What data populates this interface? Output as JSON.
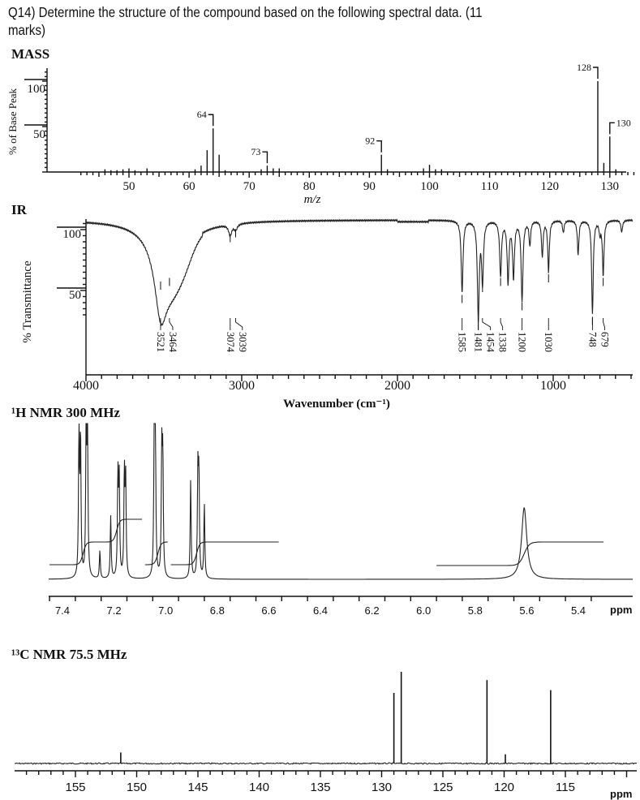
{
  "question": {
    "line1": "Q14) Determine the structure of the compound based on the following spectral data. (11",
    "line2": "marks)"
  },
  "chart_data": [
    {
      "type": "bar",
      "section_title": "MASS",
      "xlabel": "m/z",
      "ylabel": "% of Base Peak",
      "xlim": [
        40,
        135
      ],
      "ylim": [
        0,
        110
      ],
      "x_ticks": [
        50,
        60,
        70,
        80,
        90,
        100,
        110,
        120,
        130
      ],
      "y_ticks": [
        50,
        100
      ],
      "peaks": [
        {
          "mz": 46,
          "intensity": 3
        },
        {
          "mz": 47,
          "intensity": 2
        },
        {
          "mz": 48,
          "intensity": 2
        },
        {
          "mz": 49,
          "intensity": 3
        },
        {
          "mz": 50,
          "intensity": 4
        },
        {
          "mz": 51,
          "intensity": 2
        },
        {
          "mz": 53,
          "intensity": 4
        },
        {
          "mz": 61,
          "intensity": 3
        },
        {
          "mz": 62,
          "intensity": 7
        },
        {
          "mz": 63,
          "intensity": 24
        },
        {
          "mz": 64,
          "intensity": 48,
          "label": "64"
        },
        {
          "mz": 65,
          "intensity": 19
        },
        {
          "mz": 66,
          "intensity": 2
        },
        {
          "mz": 72,
          "intensity": 3
        },
        {
          "mz": 73,
          "intensity": 7,
          "label": "73"
        },
        {
          "mz": 74,
          "intensity": 4
        },
        {
          "mz": 75,
          "intensity": 4
        },
        {
          "mz": 92,
          "intensity": 19,
          "label": "92"
        },
        {
          "mz": 93,
          "intensity": 3
        },
        {
          "mz": 99,
          "intensity": 4
        },
        {
          "mz": 100,
          "intensity": 8
        },
        {
          "mz": 101,
          "intensity": 3
        },
        {
          "mz": 102,
          "intensity": 3
        },
        {
          "mz": 128,
          "intensity": 100,
          "label": "128"
        },
        {
          "mz": 129,
          "intensity": 10
        },
        {
          "mz": 130,
          "intensity": 39,
          "label": "130"
        },
        {
          "mz": 131,
          "intensity": 3
        }
      ]
    },
    {
      "type": "line",
      "section_title": "IR",
      "xlabel": "Wavenumber (cm⁻¹)",
      "ylabel": "% Transmittance",
      "xlim": [
        4000,
        490
      ],
      "x_reversed": true,
      "x_ticks": [
        4000,
        3000,
        2000,
        1000
      ],
      "y_ticks": [
        50,
        100
      ],
      "baseline_transmittance": 108,
      "peaks": [
        {
          "wavenumber": 3521,
          "transmittance": 60,
          "label": "3521"
        },
        {
          "wavenumber": 3464,
          "transmittance": 63,
          "label": "3464"
        },
        {
          "wavenumber": 3074,
          "transmittance": 99,
          "label": "3074"
        },
        {
          "wavenumber": 3039,
          "transmittance": 103,
          "label": "3039"
        },
        {
          "wavenumber": 1585,
          "transmittance": 49,
          "label": "1585"
        },
        {
          "wavenumber": 1481,
          "transmittance": 27,
          "label": "1481"
        },
        {
          "wavenumber": 1454,
          "transmittance": 58,
          "label": "1454"
        },
        {
          "wavenumber": 1338,
          "transmittance": 63,
          "label": "1338"
        },
        {
          "wavenumber": 1290,
          "transmittance": 58
        },
        {
          "wavenumber": 1255,
          "transmittance": 62
        },
        {
          "wavenumber": 1200,
          "transmittance": 43,
          "label": "1200"
        },
        {
          "wavenumber": 1150,
          "transmittance": 88
        },
        {
          "wavenumber": 1070,
          "transmittance": 78
        },
        {
          "wavenumber": 1030,
          "transmittance": 66,
          "label": "1030"
        },
        {
          "wavenumber": 935,
          "transmittance": 98
        },
        {
          "wavenumber": 840,
          "transmittance": 80
        },
        {
          "wavenumber": 748,
          "transmittance": 31,
          "label": "748"
        },
        {
          "wavenumber": 700,
          "transmittance": 98
        },
        {
          "wavenumber": 679,
          "transmittance": 63,
          "label": "679"
        },
        {
          "wavenumber": 560,
          "transmittance": 98
        }
      ]
    },
    {
      "type": "line",
      "section_title": "¹H NMR 300 MHz",
      "xlabel": "ppm",
      "xlim": [
        7.45,
        5.3
      ],
      "x_reversed": true,
      "x_ticks": [
        "7.4",
        "7.2",
        "7.0",
        "6.8",
        "6.6",
        "6.4",
        "6.2",
        "6.0",
        "5.8",
        "5.6",
        "5.4"
      ],
      "lines": [
        {
          "ppm": 7.336,
          "height": 92
        },
        {
          "ppm": 7.33,
          "height": 90
        },
        {
          "ppm": 7.308,
          "height": 98
        },
        {
          "ppm": 7.303,
          "height": 95
        },
        {
          "ppm": 7.255,
          "height": 18
        },
        {
          "ppm": 7.213,
          "height": 40
        },
        {
          "ppm": 7.185,
          "height": 65
        },
        {
          "ppm": 7.18,
          "height": 62
        },
        {
          "ppm": 7.16,
          "height": 67
        },
        {
          "ppm": 7.155,
          "height": 63
        },
        {
          "ppm": 7.044,
          "height": 99
        },
        {
          "ppm": 7.04,
          "height": 95
        },
        {
          "ppm": 7.015,
          "height": 78
        },
        {
          "ppm": 7.011,
          "height": 75
        },
        {
          "ppm": 6.903,
          "height": 63
        },
        {
          "ppm": 6.875,
          "height": 66
        },
        {
          "ppm": 6.871,
          "height": 64
        },
        {
          "ppm": 6.85,
          "height": 48
        },
        {
          "ppm": 5.61,
          "height": 46,
          "broad": true
        }
      ],
      "integrals": [
        {
          "from": 7.45,
          "to": 7.09,
          "steps": [
            {
              "ppm": 7.32,
              "rise": 1
            },
            {
              "ppm": 7.19,
              "rise": 1
            }
          ]
        },
        {
          "from": 7.08,
          "to": 6.99,
          "steps": [
            {
              "ppm": 7.03,
              "rise": 1
            }
          ]
        },
        {
          "from": 6.98,
          "to": 6.56,
          "steps": [
            {
              "ppm": 6.88,
              "rise": 1
            }
          ]
        },
        {
          "from": 5.95,
          "to": 5.3,
          "steps": [
            {
              "ppm": 5.61,
              "rise": 1
            }
          ]
        }
      ]
    },
    {
      "type": "line",
      "section_title": "¹³C NMR 75.5 MHz",
      "xlabel": "ppm",
      "xlim": [
        160,
        110
      ],
      "x_reversed": true,
      "x_ticks": [
        "155",
        "150",
        "145",
        "140",
        "135",
        "130",
        "125",
        "120",
        "115"
      ],
      "lines": [
        {
          "ppm": 151.3,
          "height": 12
        },
        {
          "ppm": 129.0,
          "height": 77
        },
        {
          "ppm": 128.4,
          "height": 100
        },
        {
          "ppm": 121.4,
          "height": 91
        },
        {
          "ppm": 119.9,
          "height": 10
        },
        {
          "ppm": 116.2,
          "height": 80
        }
      ]
    }
  ]
}
